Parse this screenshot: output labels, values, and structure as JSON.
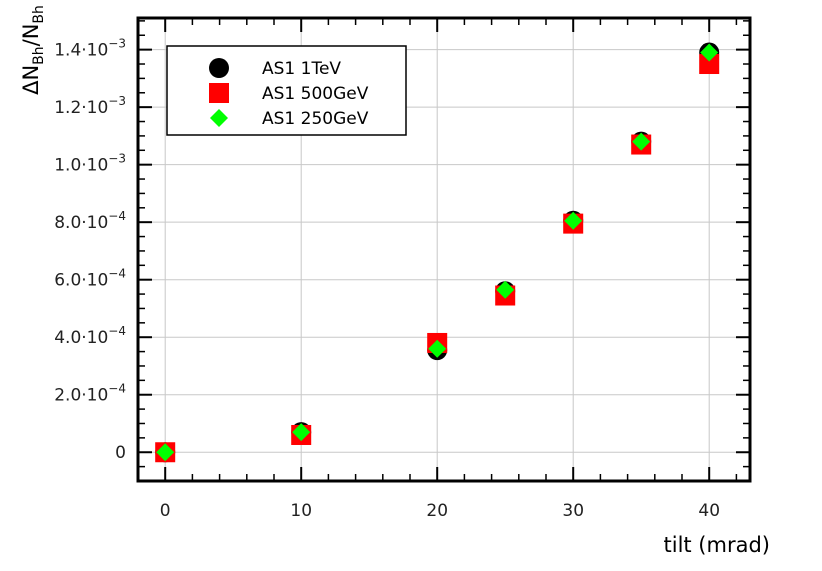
{
  "chart_data": {
    "type": "scatter",
    "title": "",
    "xlabel": "tilt (mrad)",
    "ylabel_main": "ΔN",
    "ylabel_sub1": "Bh",
    "ylabel_mid": "/N",
    "ylabel_sub2": "Bh",
    "xlim": [
      -2,
      43
    ],
    "ylim": [
      -0.0001,
      0.00151
    ],
    "x_ticks": [
      {
        "value": 0,
        "label": "0"
      },
      {
        "value": 10,
        "label": "10"
      },
      {
        "value": 20,
        "label": "20"
      },
      {
        "value": 30,
        "label": "30"
      },
      {
        "value": 40,
        "label": "40"
      }
    ],
    "y_ticks": [
      {
        "value": 0,
        "mantissa": "0",
        "exp": ""
      },
      {
        "value": 0.0002,
        "mantissa": "2.0·10",
        "exp": "−4"
      },
      {
        "value": 0.0004,
        "mantissa": "4.0·10",
        "exp": "−4"
      },
      {
        "value": 0.0006,
        "mantissa": "6.0·10",
        "exp": "−4"
      },
      {
        "value": 0.0008,
        "mantissa": "8.0·10",
        "exp": "−4"
      },
      {
        "value": 0.001,
        "mantissa": "1.0·10",
        "exp": "−3"
      },
      {
        "value": 0.0012,
        "mantissa": "1.2·10",
        "exp": "−3"
      },
      {
        "value": 0.0014,
        "mantissa": "1.4·10",
        "exp": "−3"
      }
    ],
    "grid": true,
    "legend_position": "top-left",
    "series": [
      {
        "name": "AS1 1TeV",
        "marker": "circle",
        "color": "#000000",
        "x": [
          0,
          10,
          20,
          25,
          30,
          35,
          40
        ],
        "y": [
          0.0,
          7e-05,
          0.000355,
          0.00056,
          0.000805,
          0.00108,
          0.00139
        ]
      },
      {
        "name": "AS1 500GeV",
        "marker": "square",
        "color": "#ff0000",
        "x": [
          0,
          10,
          20,
          25,
          30,
          35,
          40
        ],
        "y": [
          0.0,
          6e-05,
          0.00038,
          0.000545,
          0.000795,
          0.00107,
          0.00135
        ]
      },
      {
        "name": "AS1 250GeV",
        "marker": "diamond",
        "color": "#00ff00",
        "x": [
          0,
          10,
          20,
          25,
          30,
          35,
          40
        ],
        "y": [
          0.0,
          7e-05,
          0.00036,
          0.000565,
          0.000805,
          0.00108,
          0.00139
        ]
      }
    ]
  }
}
